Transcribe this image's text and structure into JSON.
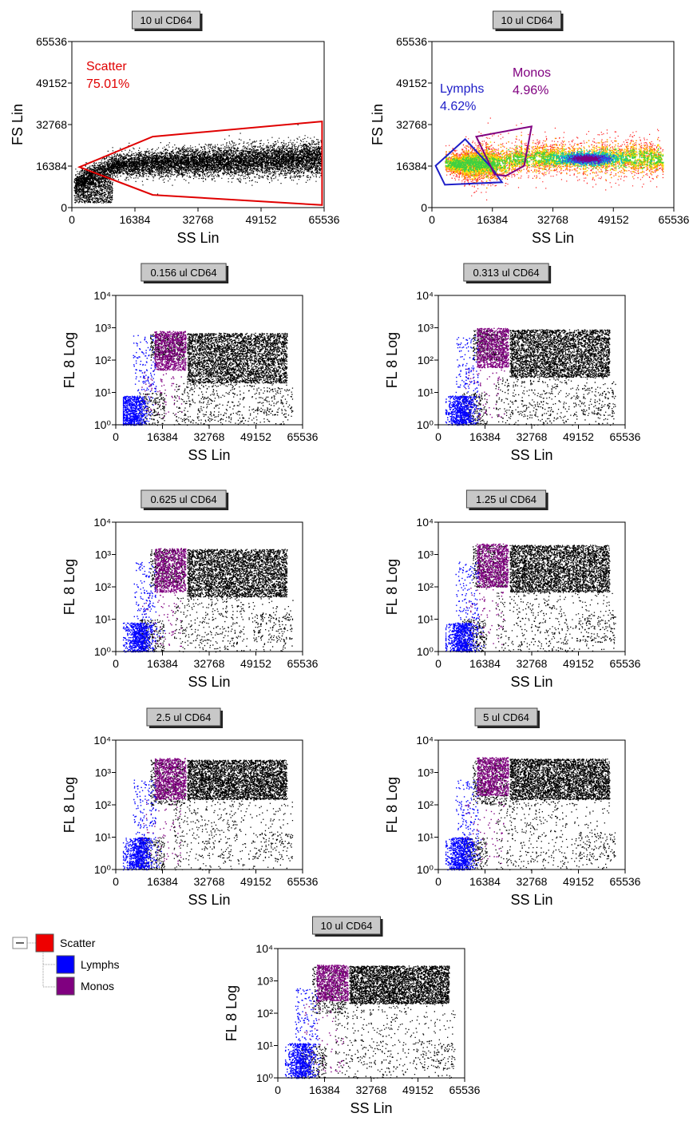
{
  "colors": {
    "scatter": "#e00000",
    "lymphs": "#0000ff",
    "monos": "#800080",
    "events": "#000000"
  },
  "legend": {
    "items": [
      {
        "label": "Scatter",
        "color": "#ee0000",
        "level": 0
      },
      {
        "label": "Lymphs",
        "color": "#0000ff",
        "level": 1
      },
      {
        "label": "Monos",
        "color": "#800080",
        "level": 1
      }
    ]
  },
  "chart_data": [
    {
      "id": "fs-ss-scatter-gate",
      "type": "scatter",
      "title": "10 ul CD64",
      "xlabel": "SS Lin",
      "ylabel": "FS Lin",
      "xscale": "linear",
      "yscale": "linear",
      "xlim": [
        0,
        65536
      ],
      "ylim": [
        0,
        65536
      ],
      "xticks": [
        "0",
        "16384",
        "32768",
        "49152",
        "65536"
      ],
      "yticks": [
        "0",
        "16384",
        "32768",
        "49152",
        "65536"
      ],
      "gates": [
        {
          "name": "Scatter",
          "percent": "75.01%",
          "color": "#e00000",
          "polygon": [
            [
              2000,
              16000
            ],
            [
              21000,
              28000
            ],
            [
              65000,
              34000
            ],
            [
              65000,
              1000
            ],
            [
              21000,
              5000
            ]
          ]
        }
      ],
      "population": "black-density"
    },
    {
      "id": "fs-ss-lymph-mono-gates",
      "type": "scatter",
      "title": "10 ul CD64",
      "xlabel": "SS Lin",
      "ylabel": "FS Lin",
      "xscale": "linear",
      "yscale": "linear",
      "xlim": [
        0,
        65536
      ],
      "ylim": [
        0,
        65536
      ],
      "xticks": [
        "0",
        "16384",
        "32768",
        "49152",
        "65536"
      ],
      "yticks": [
        "0",
        "16384",
        "32768",
        "49152",
        "65536"
      ],
      "gates": [
        {
          "name": "Lymphs",
          "percent": "4.62%",
          "color": "#1e1ec8",
          "polygon": [
            [
              1000,
              16500
            ],
            [
              9000,
              27000
            ],
            [
              16000,
              16000
            ],
            [
              19000,
              10000
            ],
            [
              3500,
              9000
            ]
          ]
        },
        {
          "name": "Monos",
          "percent": "4.96%",
          "color": "#800080",
          "polygon": [
            [
              12000,
              28000
            ],
            [
              27000,
              32000
            ],
            [
              25000,
              16500
            ],
            [
              20000,
              12500
            ],
            [
              17000,
              13000
            ]
          ]
        }
      ],
      "population": "heat-density"
    },
    {
      "id": "cd64-0156",
      "type": "scatter",
      "title": "0.156 ul CD64",
      "xlabel": "SS Lin",
      "ylabel": "FL 8 Log",
      "xscale": "linear",
      "yscale": "log",
      "xlim": [
        0,
        65536
      ],
      "ylim": [
        1,
        10000
      ],
      "xticks": [
        "0",
        "16384",
        "32768",
        "49152",
        "65536"
      ],
      "yticks": [
        "10⁰",
        "10¹",
        "10²",
        "10³",
        "10⁴"
      ],
      "populations": {
        "black_fl": [
          20,
          700
        ],
        "mono_fl": [
          50,
          800
        ],
        "lymph_fl": [
          1,
          8
        ]
      }
    },
    {
      "id": "cd64-0313",
      "type": "scatter",
      "title": "0.313 ul CD64",
      "xlabel": "SS Lin",
      "ylabel": "FL 8 Log",
      "xscale": "linear",
      "yscale": "log",
      "xlim": [
        0,
        65536
      ],
      "ylim": [
        1,
        10000
      ],
      "xticks": [
        "0",
        "16384",
        "32768",
        "49152",
        "65536"
      ],
      "yticks": [
        "10⁰",
        "10¹",
        "10²",
        "10³",
        "10⁴"
      ],
      "populations": {
        "black_fl": [
          30,
          900
        ],
        "mono_fl": [
          60,
          1000
        ],
        "lymph_fl": [
          1,
          8
        ]
      }
    },
    {
      "id": "cd64-0625",
      "type": "scatter",
      "title": "0.625 ul CD64",
      "xlabel": "SS Lin",
      "ylabel": "FL 8 Log",
      "xscale": "linear",
      "yscale": "log",
      "xlim": [
        0,
        65536
      ],
      "ylim": [
        1,
        10000
      ],
      "xticks": [
        "0",
        "16384",
        "32768",
        "49152",
        "65536"
      ],
      "yticks": [
        "10⁰",
        "10¹",
        "10²",
        "10³",
        "10⁴"
      ],
      "populations": {
        "black_fl": [
          50,
          1500
        ],
        "mono_fl": [
          70,
          1600
        ],
        "lymph_fl": [
          1,
          8
        ]
      }
    },
    {
      "id": "cd64-125",
      "type": "scatter",
      "title": "1.25 ul CD64",
      "xlabel": "SS Lin",
      "ylabel": "FL 8 Log",
      "xscale": "linear",
      "yscale": "log",
      "xlim": [
        0,
        65536
      ],
      "ylim": [
        1,
        10000
      ],
      "xticks": [
        "0",
        "16384",
        "32768",
        "49152",
        "65536"
      ],
      "yticks": [
        "10⁰",
        "10¹",
        "10²",
        "10³",
        "10⁴"
      ],
      "populations": {
        "black_fl": [
          70,
          2000
        ],
        "mono_fl": [
          100,
          2200
        ],
        "lymph_fl": [
          1,
          8
        ]
      }
    },
    {
      "id": "cd64-25",
      "type": "scatter",
      "title": "2.5 ul CD64",
      "xlabel": "SS Lin",
      "ylabel": "FL 8 Log",
      "xscale": "linear",
      "yscale": "log",
      "xlim": [
        0,
        65536
      ],
      "ylim": [
        1,
        10000
      ],
      "xticks": [
        "0",
        "16384",
        "32768",
        "49152",
        "65536"
      ],
      "yticks": [
        "10⁰",
        "10¹",
        "10²",
        "10³",
        "10⁴"
      ],
      "populations": {
        "black_fl": [
          150,
          2500
        ],
        "mono_fl": [
          150,
          2800
        ],
        "lymph_fl": [
          1,
          10
        ]
      }
    },
    {
      "id": "cd64-5",
      "type": "scatter",
      "title": "5 ul CD64",
      "xlabel": "SS Lin",
      "ylabel": "FL 8 Log",
      "xscale": "linear",
      "yscale": "log",
      "xlim": [
        0,
        65536
      ],
      "ylim": [
        1,
        10000
      ],
      "xticks": [
        "0",
        "16384",
        "32768",
        "49152",
        "65536"
      ],
      "yticks": [
        "10⁰",
        "10¹",
        "10²",
        "10³",
        "10⁴"
      ],
      "populations": {
        "black_fl": [
          150,
          2700
        ],
        "mono_fl": [
          200,
          3000
        ],
        "lymph_fl": [
          1,
          10
        ]
      }
    },
    {
      "id": "cd64-10",
      "type": "scatter",
      "title": "10 ul CD64",
      "xlabel": "SS Lin",
      "ylabel": "FL 8 Log",
      "xscale": "linear",
      "yscale": "log",
      "xlim": [
        0,
        65536
      ],
      "ylim": [
        1,
        10000
      ],
      "xticks": [
        "0",
        "16384",
        "32768",
        "49152",
        "65536"
      ],
      "yticks": [
        "10⁰",
        "10¹",
        "10²",
        "10³",
        "10⁴"
      ],
      "populations": {
        "black_fl": [
          200,
          3000
        ],
        "mono_fl": [
          250,
          3200
        ],
        "lymph_fl": [
          1,
          12
        ]
      }
    }
  ]
}
